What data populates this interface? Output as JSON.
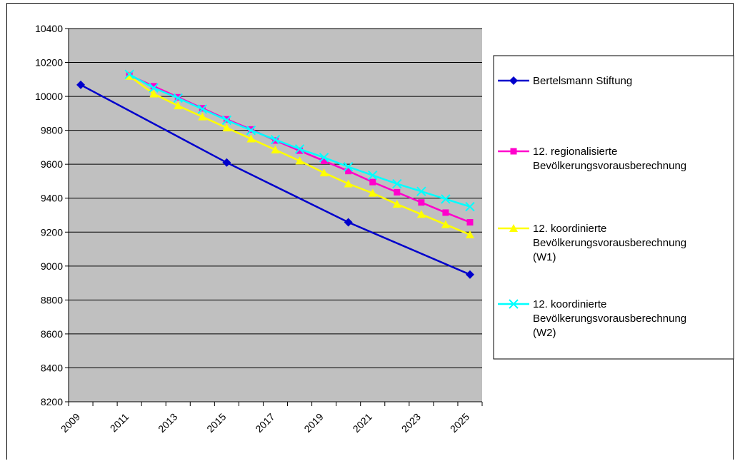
{
  "chart_data": {
    "type": "line",
    "title": "",
    "xlabel": "",
    "ylabel": "",
    "ylim": [
      8200,
      10400
    ],
    "xlim": [
      2009,
      2026
    ],
    "x_ticks": [
      "2009",
      "2011",
      "2013",
      "2015",
      "2017",
      "2019",
      "2021",
      "2023",
      "2025"
    ],
    "y_ticks": [
      "8200",
      "8400",
      "8600",
      "8800",
      "9000",
      "9200",
      "9400",
      "9600",
      "9800",
      "10000",
      "10200",
      "10400"
    ],
    "grid": "horizontal",
    "plot_background": "#C0C0C0",
    "legend_position": "right",
    "series": [
      {
        "name": "Bertelsmann Stiftung",
        "legend_lines": [
          "Bertelsmann Stiftung"
        ],
        "color": "#0000CC",
        "marker": "diamond",
        "x": [
          2009,
          2015,
          2020,
          2025
        ],
        "values": [
          10068,
          9610,
          9258,
          8950
        ]
      },
      {
        "name": "12. regionalisierte Bevölkerungsvorausberechnung",
        "legend_lines": [
          "12. regionalisierte",
          "Bevölkerungsvorausberechnung"
        ],
        "color": "#FF00CC",
        "marker": "square",
        "x": [
          2011,
          2012,
          2013,
          2014,
          2015,
          2016,
          2017,
          2018,
          2019,
          2020,
          2021,
          2022,
          2023,
          2024,
          2025
        ],
        "values": [
          10125,
          10060,
          9995,
          9930,
          9865,
          9805,
          9740,
          9680,
          9620,
          9560,
          9495,
          9435,
          9375,
          9315,
          9258
        ]
      },
      {
        "name": "12. koordinierte Bevölkerungsvorausberechnung (W1)",
        "legend_lines": [
          "12. koordinierte",
          "Bevölkerungsvorausberechnung",
          "(W1)"
        ],
        "color": "#FFFF00",
        "marker": "triangle",
        "x": [
          2011,
          2012,
          2013,
          2014,
          2015,
          2016,
          2017,
          2018,
          2019,
          2020,
          2021,
          2022,
          2023,
          2024,
          2025
        ],
        "values": [
          10120,
          10015,
          9945,
          9880,
          9815,
          9750,
          9685,
          9620,
          9550,
          9485,
          9430,
          9365,
          9305,
          9245,
          9185
        ]
      },
      {
        "name": "12. koordinierte Bevölkerungsvorausberechnung (W2)",
        "legend_lines": [
          "12. koordinierte",
          "Bevölkerungsvorausberechnung",
          "(W2)"
        ],
        "color": "#00FFFF",
        "marker": "x",
        "x": [
          2011,
          2012,
          2013,
          2014,
          2015,
          2016,
          2017,
          2018,
          2019,
          2020,
          2021,
          2022,
          2023,
          2024,
          2025
        ],
        "values": [
          10130,
          10050,
          9990,
          9925,
          9860,
          9800,
          9745,
          9690,
          9640,
          9585,
          9535,
          9485,
          9440,
          9395,
          9350
        ]
      }
    ]
  }
}
